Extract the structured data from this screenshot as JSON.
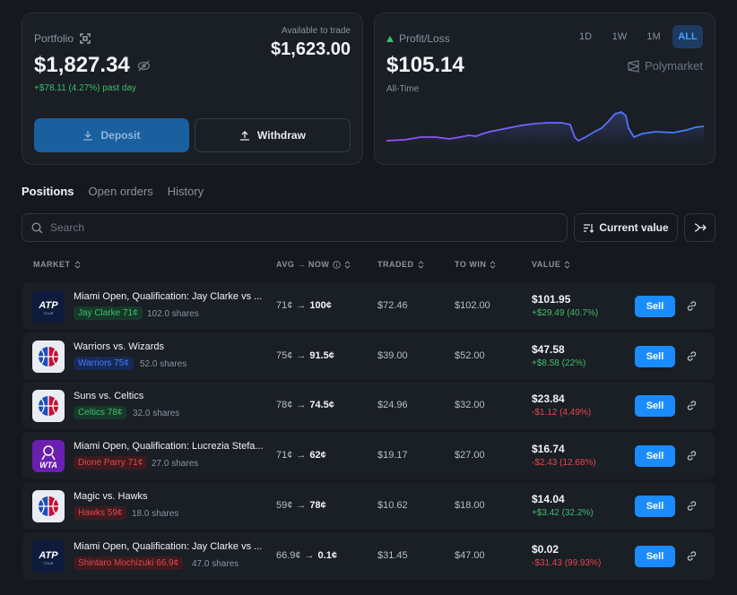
{
  "portfolio": {
    "label": "Portfolio",
    "value": "$1,827.34",
    "change": "+$78.11 (4.27%) past day",
    "available_label": "Available to trade",
    "available_value": "$1,623.00",
    "deposit_label": "Deposit",
    "withdraw_label": "Withdraw"
  },
  "pnl": {
    "label": "Profit/Loss",
    "value": "$105.14",
    "period": "All-Time",
    "brand": "Polymarket",
    "ranges": [
      "1D",
      "1W",
      "1M",
      "ALL"
    ],
    "active_range": "ALL"
  },
  "tabs": [
    "Positions",
    "Open orders",
    "History"
  ],
  "search": {
    "placeholder": "Search"
  },
  "sort_label": "Current value",
  "columns": {
    "market": "MARKET",
    "avg_now": "AVG → NOW",
    "traded": "TRADED",
    "to_win": "TO WIN",
    "value": "VALUE"
  },
  "positions": [
    {
      "logo": "ATP",
      "title": "Miami Open, Qualification: Jay Clarke vs ...",
      "outcome": "Jay Clarke 71¢",
      "shares": "102.0 shares",
      "avg": "71¢",
      "now": "100¢",
      "traded": "$72.46",
      "to_win": "$102.00",
      "value": "$101.95",
      "change": "+$29.49 (40.7%)"
    },
    {
      "logo": "NBA",
      "title": "Warriors vs. Wizards",
      "outcome": "Warriors 75¢",
      "shares": "52.0 shares",
      "avg": "75¢",
      "now": "91.5¢",
      "traded": "$39.00",
      "to_win": "$52.00",
      "value": "$47.58",
      "change": "+$8.58 (22%)"
    },
    {
      "logo": "NBA",
      "title": "Suns vs. Celtics",
      "outcome": "Celtics 78¢",
      "shares": "32.0 shares",
      "avg": "78¢",
      "now": "74.5¢",
      "traded": "$24.96",
      "to_win": "$32.00",
      "value": "$23.84",
      "change": "-$1.12 (4.49%)"
    },
    {
      "logo": "WTA",
      "title": "Miami Open, Qualification: Lucrezia Stefa...",
      "outcome": "Dione Parry 71¢",
      "shares": "27.0 shares",
      "avg": "71¢",
      "now": "62¢",
      "traded": "$19.17",
      "to_win": "$27.00",
      "value": "$16.74",
      "change": "-$2.43 (12.68%)"
    },
    {
      "logo": "NBA",
      "title": "Magic vs. Hawks",
      "outcome": "Hawks 59¢",
      "shares": "18.0 shares",
      "avg": "59¢",
      "now": "78¢",
      "traded": "$10.62",
      "to_win": "$18.00",
      "value": "$14.04",
      "change": "+$3.42 (32.2%)"
    },
    {
      "logo": "ATP",
      "title": "Miami Open, Qualification: Jay Clarke vs ...",
      "outcome": "Shintaro Mochizuki 66.9¢",
      "shares": "47.0 shares",
      "avg": "66.9¢",
      "now": "0.1¢",
      "traded": "$31.45",
      "to_win": "$47.00",
      "value": "$0.02",
      "change": "-$31.43 (99.93%)"
    }
  ],
  "sell_label": "Sell",
  "colors": {
    "accent": "#1a8cff",
    "positive": "#3fbf6a",
    "negative": "#e5484d",
    "background": "#15181e"
  }
}
